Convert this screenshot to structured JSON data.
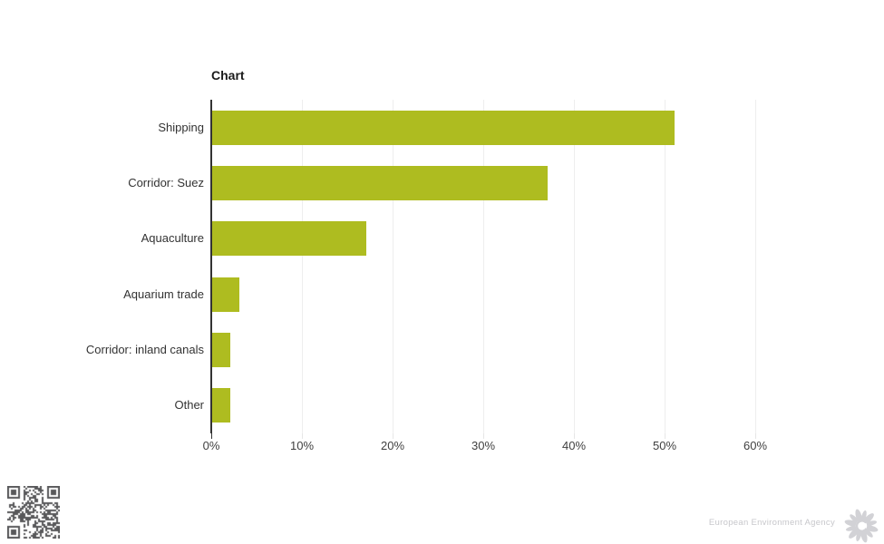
{
  "title": "Chart",
  "chart_data": {
    "type": "bar",
    "orientation": "horizontal",
    "title": "Chart",
    "categories": [
      "Shipping",
      "Corridor: Suez",
      "Aquaculture",
      "Aquarium trade",
      "Corridor: inland canals",
      "Other"
    ],
    "values": [
      51,
      37,
      17,
      3,
      2,
      2
    ],
    "unit": "%",
    "xlabel": "",
    "ylabel": "",
    "xlim": [
      0,
      60
    ],
    "x_ticks": [
      "0%",
      "10%",
      "20%",
      "30%",
      "40%",
      "50%",
      "60%"
    ],
    "grid": true,
    "legend": false,
    "bar_color": "#aebc20",
    "gridline_color": "#eeeeee",
    "axis_color": "#333333"
  },
  "footer": {
    "agency": "European Environment Agency",
    "qr_code": "qr-code-image",
    "logo": "eea-sunflower-logo"
  }
}
